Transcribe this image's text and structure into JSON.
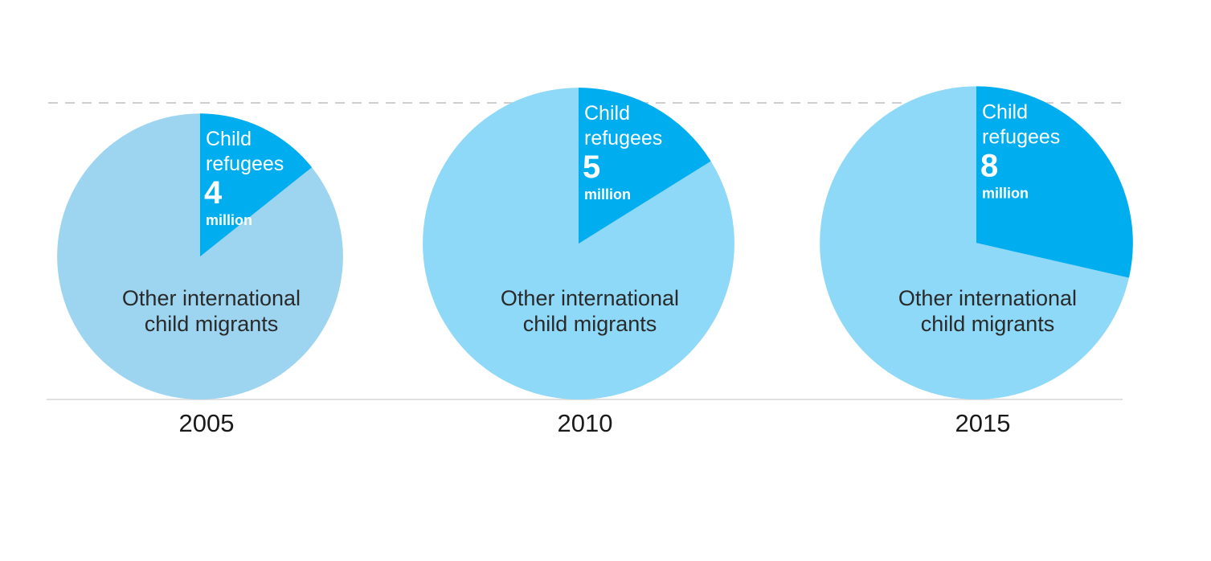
{
  "chart_data": {
    "type": "pie",
    "title": "",
    "unit": "million",
    "categories": [
      "2005",
      "2010",
      "2015"
    ],
    "series": [
      {
        "name": "Child refugees",
        "color": "#00aeef",
        "values": [
          4,
          5,
          8
        ]
      },
      {
        "name": "Other international child migrants",
        "color": "#8ed8f8",
        "values": [
          24,
          26,
          20
        ]
      }
    ],
    "labels": {
      "refugee_line1": "Child",
      "refugee_line2": "refugees",
      "unit": "million",
      "other_line1": "Other international",
      "other_line2": "child migrants"
    },
    "grid": false,
    "legend": "none"
  }
}
